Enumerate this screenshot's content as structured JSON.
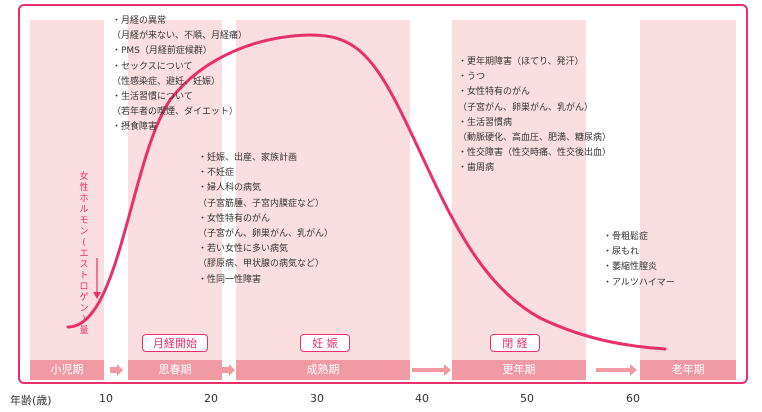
{
  "ylabel": "女性ホルモン(エストロゲン)量",
  "x_axis_title": "年齢(歳)",
  "ticks": [
    "10",
    "20",
    "30",
    "40",
    "50",
    "60"
  ],
  "phases": {
    "child": "小児期",
    "puberty": "思春期",
    "mature": "成熟期",
    "menopause": "更年期",
    "old": "老年期"
  },
  "events": {
    "menarche": "月経開始",
    "pregnancy": "妊 娠",
    "menopause": "閉 経"
  },
  "notes": {
    "puberty": [
      "・月経の異常",
      "（月経が来ない、不順、月経痛）",
      "・PMS（月経前症候群）",
      "・セックスについて",
      "（性感染症、避妊、妊娠）",
      "・生活習慣について",
      "（若年者の喫煙、ダイエット）",
      "・摂食障害"
    ],
    "mature": [
      "・妊娠、出産、家族計画",
      "・不妊症",
      "・婦人科の病気",
      "（子宮筋腫、子宮内膜症など）",
      "・女性特有のがん",
      "（子宮がん、卵巣がん、乳がん）",
      "・若い女性に多い病気",
      "（膠原病、甲状腺の病気など）",
      "・性同一性障害"
    ],
    "menopause": [
      "・更年期障害（ほてり、発汗）",
      "・うつ",
      "・女性特有のがん",
      "（子宮がん、卵巣がん、乳がん）",
      "・生活習慣病",
      "（動脈硬化、高血圧、肥満、糖尿病）",
      "・性交障害（性交時痛、性交後出血）",
      "・歯周病"
    ],
    "old": [
      "・骨粗鬆症",
      "・尿もれ",
      "・萎縮性膣炎",
      "・アルツハイマー"
    ]
  },
  "colors": {
    "accent": "#e8306a",
    "band": "#fbdfe0",
    "phase_bar": "#f29aa4",
    "text": "#333333"
  }
}
